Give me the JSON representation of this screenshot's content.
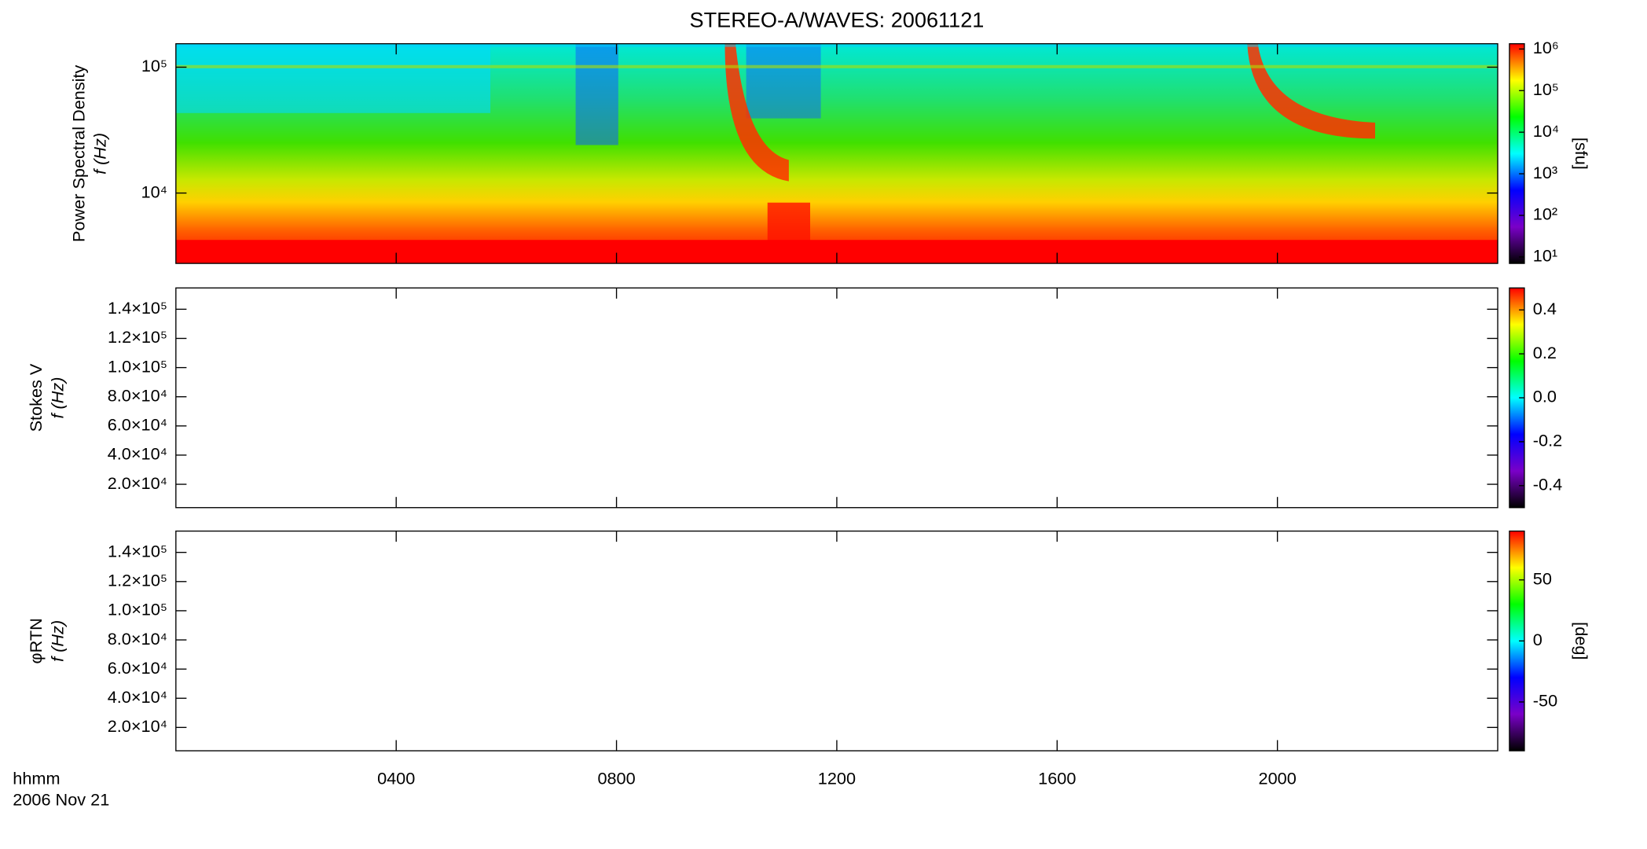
{
  "chart_data": [
    {
      "type": "heatmap",
      "title": "STEREO-A/WAVES: 20061121",
      "ylabel": [
        "Power Spectral Density",
        "f (Hz)"
      ],
      "yscale": "log",
      "ylim": [
        2760,
        153600
      ],
      "yticks": [
        {
          "value": 10000,
          "label": "10⁴"
        },
        {
          "value": 100000,
          "label": "10⁵"
        }
      ],
      "xlim": [
        0,
        24
      ],
      "colorbar": {
        "scale": "log",
        "lim": [
          7,
          1340000
        ],
        "label": "[sfu]",
        "ticks": [
          {
            "value": 10,
            "label": "10¹"
          },
          {
            "value": 100,
            "label": "10²"
          },
          {
            "value": 1000,
            "label": "10³"
          },
          {
            "value": 10000,
            "label": "10⁴"
          },
          {
            "value": 100000,
            "label": "10⁵"
          },
          {
            "value": 1000000,
            "label": "10⁶"
          }
        ]
      },
      "colormap": [
        "#000000",
        "#7a00c8",
        "#0000ff",
        "#00ffff",
        "#00ff00",
        "#ffff00",
        "#ff0000"
      ]
    },
    {
      "type": "heatmap",
      "ylabel": [
        "Stokes V",
        "f (Hz)"
      ],
      "yscale": "linear",
      "ylim": [
        4000,
        154600
      ],
      "yticks": [
        {
          "value": 20000,
          "label": "2.0×10⁴"
        },
        {
          "value": 40000,
          "label": "4.0×10⁴"
        },
        {
          "value": 60000,
          "label": "6.0×10⁴"
        },
        {
          "value": 80000,
          "label": "8.0×10⁴"
        },
        {
          "value": 100000,
          "label": "1.0×10⁵"
        },
        {
          "value": 120000,
          "label": "1.2×10⁵"
        },
        {
          "value": 140000,
          "label": "1.4×10⁵"
        }
      ],
      "xlim": [
        0,
        24
      ],
      "colorbar": {
        "scale": "linear",
        "lim": [
          -0.5,
          0.5
        ],
        "ticks": [
          -0.4,
          -0.2,
          {
            "value": 0,
            "label": "0.0"
          },
          0.2,
          0.4
        ]
      },
      "colormap": [
        "#000000",
        "#7a00c8",
        "#0000ff",
        "#00ffff",
        "#00ff00",
        "#ffff00",
        "#ff0000"
      ]
    },
    {
      "type": "heatmap",
      "ylabel": [
        "φRTN",
        "f (Hz)"
      ],
      "yscale": "linear",
      "ylim": [
        4000,
        154600
      ],
      "yticks": [
        {
          "value": 20000,
          "label": "2.0×10⁴"
        },
        {
          "value": 40000,
          "label": "4.0×10⁴"
        },
        {
          "value": 60000,
          "label": "6.0×10⁴"
        },
        {
          "value": 80000,
          "label": "8.0×10⁴"
        },
        {
          "value": 100000,
          "label": "1.0×10⁵"
        },
        {
          "value": 120000,
          "label": "1.2×10⁵"
        },
        {
          "value": 140000,
          "label": "1.4×10⁵"
        }
      ],
      "xlim": [
        0,
        24
      ],
      "xticks": [
        {
          "value": 4,
          "label": "0400"
        },
        {
          "value": 8,
          "label": "0800"
        },
        {
          "value": 12,
          "label": "1200"
        },
        {
          "value": 16,
          "label": "1600"
        },
        {
          "value": 20,
          "label": "2000"
        }
      ],
      "xlabel": [
        "hhmm",
        "2006 Nov 21"
      ],
      "colorbar": {
        "scale": "linear",
        "lim": [
          -90,
          90
        ],
        "label": "[deg]",
        "ticks": [
          -50,
          0,
          50
        ]
      },
      "colormap": [
        "#000000",
        "#7a00c8",
        "#0000ff",
        "#00ffff",
        "#00ff00",
        "#ffff00",
        "#ff0000"
      ]
    }
  ]
}
